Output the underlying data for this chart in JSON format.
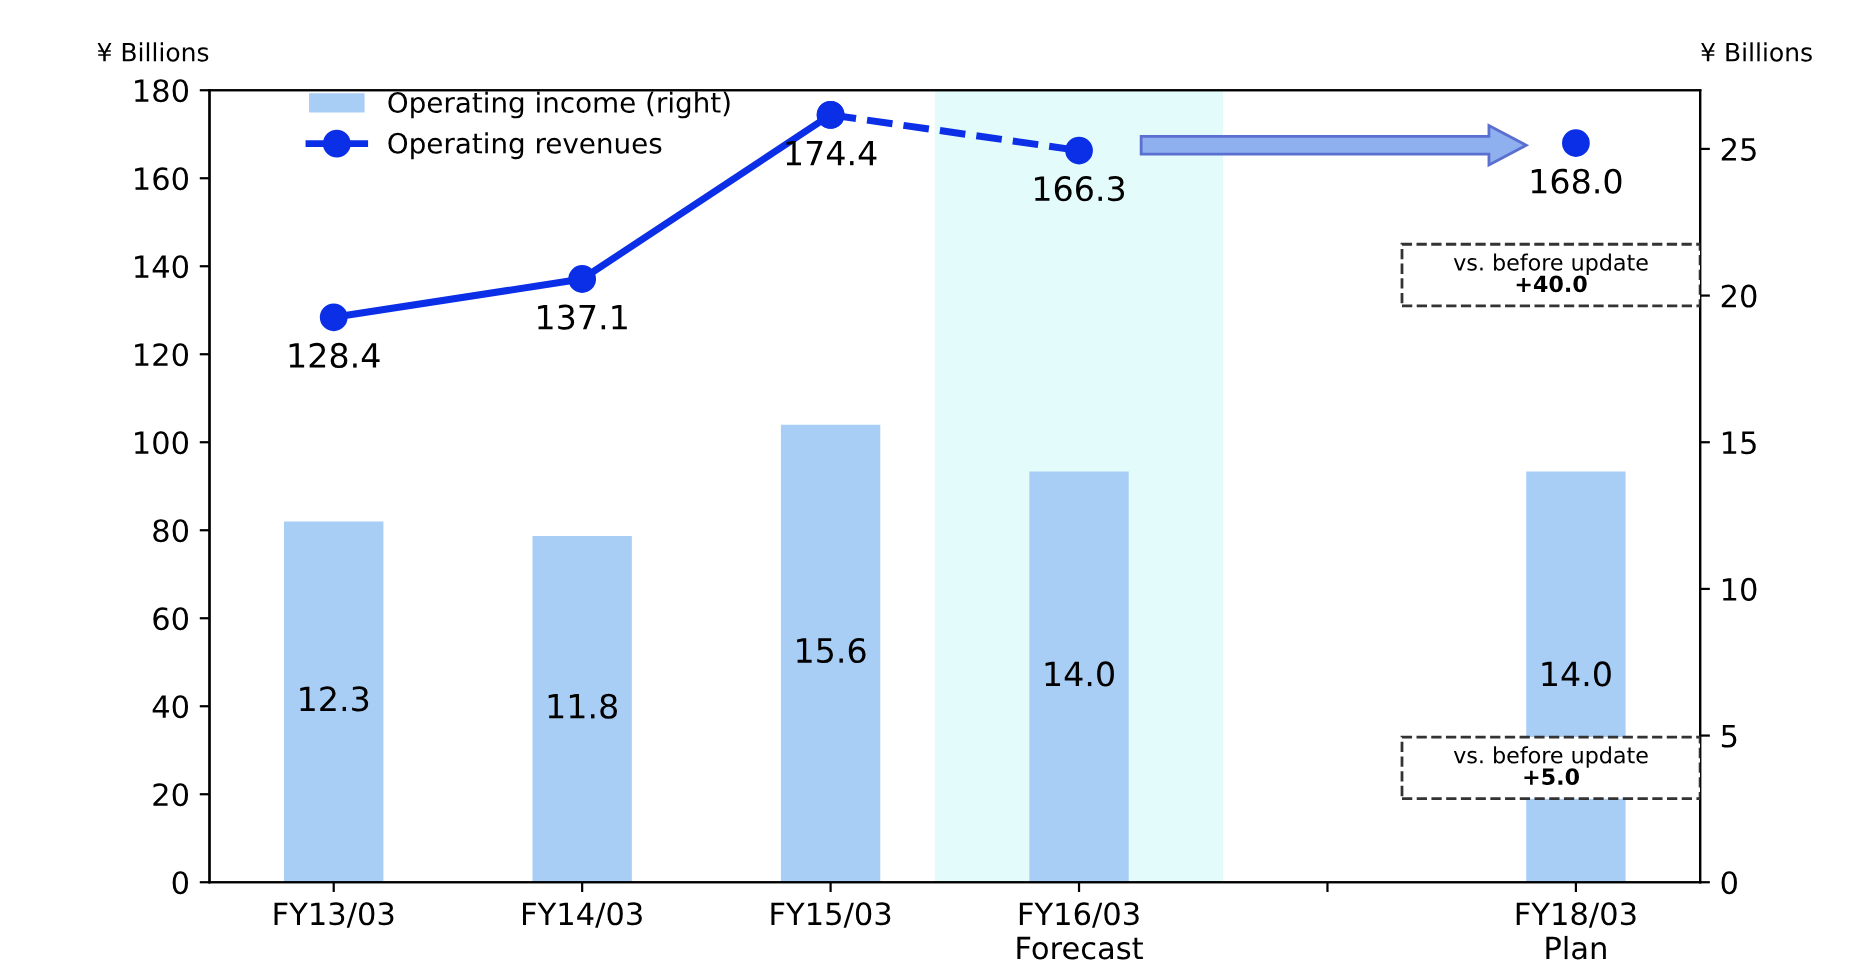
{
  "chart_data": {
    "type": "bar",
    "categories": [
      "FY13/03",
      "FY14/03",
      "FY15/03",
      "FY16/03\nForecast",
      null,
      "FY18/03\nPlan"
    ],
    "series": [
      {
        "name": "Operating income (right)",
        "axis": "y2",
        "color": "#a8cef5",
        "values": [
          12.3,
          11.8,
          15.6,
          14.0,
          null,
          14.0
        ],
        "value_labels": [
          "12.3",
          "11.8",
          "15.6",
          "14.0",
          null,
          "14.0"
        ]
      },
      {
        "name": "Operating revenues",
        "type": "line",
        "color": "#0a2fe6",
        "line_style": "solid",
        "values": [
          128.4,
          137.1,
          174.4,
          null,
          null,
          168.0
        ],
        "value_labels": [
          "128.4",
          "137.1",
          "174.4",
          null,
          null,
          "168.0"
        ]
      },
      {
        "type": "line",
        "color": "#0a2fe6",
        "line_style": "dashed",
        "values": [
          null,
          null,
          174.4,
          166.3,
          null,
          null
        ],
        "value_labels": [
          null,
          null,
          null,
          "166.3",
          null,
          null
        ]
      }
    ],
    "ylabel": "¥ Billions",
    "y2label": "¥ Billions",
    "ylim": [
      0,
      180
    ],
    "yticks": [
      0,
      20,
      40,
      60,
      80,
      100,
      120,
      140,
      160,
      180
    ],
    "y2lim": [
      0,
      27
    ],
    "y2ticks": [
      0,
      5,
      10,
      15,
      20,
      25
    ],
    "annotations": [
      "vs. before update\n+40.0",
      "vs. before update\n+5.0"
    ],
    "marker": "circle",
    "grid": false,
    "legend": "top left"
  }
}
